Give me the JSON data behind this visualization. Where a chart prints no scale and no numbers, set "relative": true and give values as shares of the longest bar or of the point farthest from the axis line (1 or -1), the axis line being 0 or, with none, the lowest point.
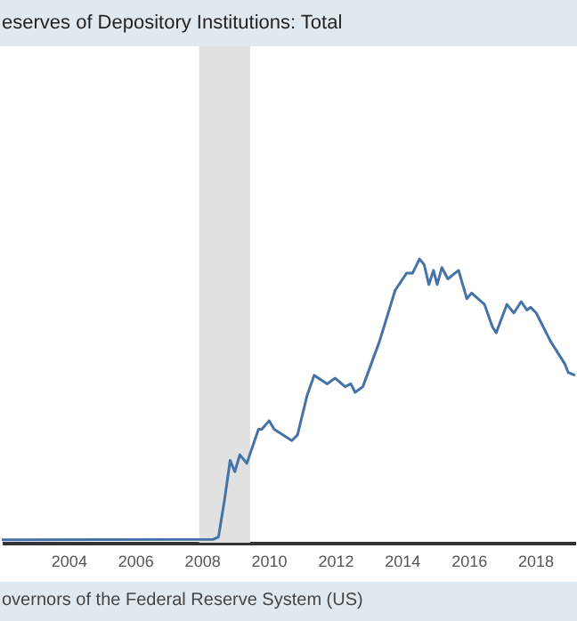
{
  "chart_data": {
    "type": "line",
    "title": "eserves of Depository Institutions: Total",
    "annotations": [
      "overnors of the Federal Reserve System (US)"
    ],
    "relative": true,
    "xlim": [
      2002,
      2019.2
    ],
    "xticks": [
      2004,
      2006,
      2008,
      2010,
      2012,
      2014,
      2016,
      2018
    ],
    "x": [
      2002.0,
      2008.35,
      2008.5,
      2008.68,
      2008.85,
      2008.99,
      2009.14,
      2009.35,
      2009.7,
      2009.8,
      2010.02,
      2010.17,
      2010.7,
      2010.87,
      2011.16,
      2011.37,
      2011.76,
      2012.0,
      2012.3,
      2012.47,
      2012.6,
      2012.83,
      2013.33,
      2013.8,
      2014.14,
      2014.32,
      2014.53,
      2014.67,
      2014.81,
      2014.95,
      2015.06,
      2015.2,
      2015.38,
      2015.7,
      2015.95,
      2016.09,
      2016.48,
      2016.72,
      2016.83,
      2017.15,
      2017.36,
      2017.58,
      2017.75,
      2017.86,
      2018.03,
      2018.46,
      2018.89,
      2018.99,
      2019.2
    ],
    "series": [
      {
        "color": "#4572a7",
        "values": [
          0.01,
          0.012,
          0.02,
          0.15,
          0.29,
          0.25,
          0.31,
          0.28,
          0.4,
          0.4,
          0.43,
          0.4,
          0.36,
          0.38,
          0.52,
          0.59,
          0.56,
          0.58,
          0.55,
          0.56,
          0.53,
          0.55,
          0.71,
          0.89,
          0.95,
          0.95,
          1.0,
          0.98,
          0.91,
          0.96,
          0.91,
          0.97,
          0.93,
          0.96,
          0.86,
          0.88,
          0.84,
          0.76,
          0.74,
          0.84,
          0.81,
          0.85,
          0.82,
          0.83,
          0.81,
          0.71,
          0.63,
          0.6,
          0.59
        ]
      }
    ],
    "bands": [
      {
        "axis": "x",
        "from": 2007.92,
        "to": 2009.45,
        "color": "#e1e1e1"
      }
    ]
  }
}
